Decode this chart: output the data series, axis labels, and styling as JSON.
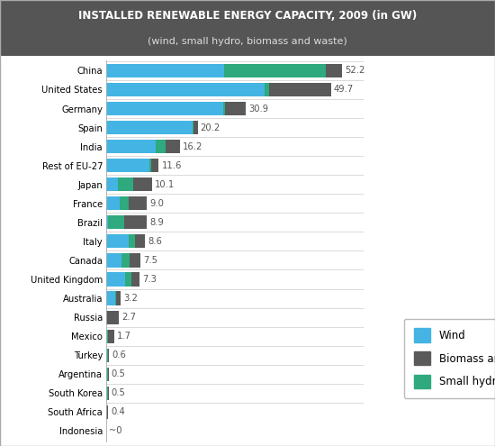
{
  "title_line1": "INSTALLED RENEWABLE ENERGY CAPACITY, 2009 (in GW)",
  "title_line2": "(wind, small hydro, biomass and waste)",
  "title_bg_color": "#555555",
  "title_text_color": "#ffffff",
  "subtitle_text_color": "#dddddd",
  "countries": [
    "China",
    "United States",
    "Germany",
    "Spain",
    "India",
    "Rest of EU-27",
    "Japan",
    "France",
    "Brazil",
    "Italy",
    "Canada",
    "United Kingdom",
    "Australia",
    "Russia",
    "Mexico",
    "Turkey",
    "Argentina",
    "South Korea",
    "South Africa",
    "Indonesia"
  ],
  "totals": [
    52.2,
    49.7,
    30.9,
    20.2,
    16.2,
    11.6,
    10.1,
    9.0,
    8.9,
    8.6,
    7.5,
    7.3,
    3.2,
    2.7,
    1.7,
    0.6,
    0.5,
    0.5,
    0.4,
    0.0
  ],
  "wind": [
    26.0,
    35.0,
    25.8,
    19.0,
    10.9,
    9.5,
    2.5,
    3.0,
    0.3,
    4.9,
    3.3,
    4.1,
    1.9,
    0.0,
    0.2,
    0.1,
    0.0,
    0.1,
    0.0,
    0.0
  ],
  "small_hydro": [
    22.5,
    1.0,
    0.4,
    0.2,
    2.3,
    0.5,
    3.5,
    2.0,
    3.6,
    1.5,
    1.8,
    1.5,
    0.2,
    0.0,
    0.2,
    0.3,
    0.4,
    0.3,
    0.0,
    0.0
  ],
  "biomass": [
    3.7,
    13.7,
    4.7,
    1.0,
    3.0,
    1.6,
    4.1,
    4.0,
    5.0,
    2.2,
    2.4,
    1.7,
    1.1,
    2.7,
    1.3,
    0.2,
    0.1,
    0.1,
    0.4,
    0.0
  ],
  "wind_color": "#44b4e4",
  "small_hydro_color": "#2eaa7e",
  "biomass_color": "#5a5a5a",
  "bar_height": 0.72,
  "xlim": [
    0,
    57
  ],
  "figsize": [
    5.5,
    4.95
  ],
  "dpi": 100,
  "bg_color": "#ffffff",
  "chart_border_color": "#aaaaaa",
  "divider_color": "#cccccc",
  "label_fontsize": 7.2,
  "value_fontsize": 7.2,
  "legend_fontsize": 8.5,
  "title_fontsize1": 8.5,
  "title_fontsize2": 8.0,
  "total_label_color": "#555555"
}
